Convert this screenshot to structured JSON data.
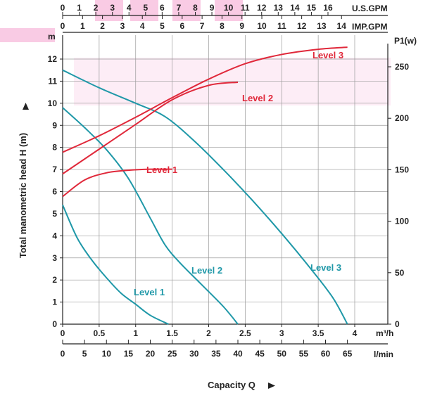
{
  "chart_data": {
    "type": "line",
    "title": "",
    "xlabel": "Capacity Q",
    "ylabel": "Total manometric head H (m)",
    "y2label": "P1(w)",
    "y_unit": "m",
    "x_unit_m3h": "m³/h",
    "x_unit_lmin": "l/min",
    "x_unit_usgpm": "U.S.GPM",
    "x_unit_impgpm": "IMP.GPM",
    "xlim": [
      0,
      4.1
    ],
    "ylim": [
      0,
      12.5
    ],
    "y2lim": [
      0,
      287
    ],
    "grid": true,
    "x_ticks_m3h": [
      "0",
      "0.5",
      "1",
      "1.5",
      "2",
      "2.5",
      "3",
      "3.5",
      "4"
    ],
    "x_ticks_lmin": [
      "0",
      "5",
      "10",
      "15",
      "20",
      "25",
      "30",
      "35",
      "40",
      "45",
      "50",
      "55",
      "60",
      "65"
    ],
    "x_ticks_usgpm": [
      "0",
      "1",
      "2",
      "3",
      "4",
      "5",
      "6",
      "7",
      "8",
      "9",
      "10",
      "11",
      "12",
      "13",
      "14",
      "15",
      "16"
    ],
    "x_ticks_impgpm": [
      "0",
      "1",
      "2",
      "3",
      "4",
      "5",
      "6",
      "7",
      "8",
      "9",
      "10",
      "11",
      "12",
      "13",
      "14"
    ],
    "y_ticks": [
      "0",
      "1",
      "2",
      "3",
      "4",
      "5",
      "6",
      "7",
      "8",
      "9",
      "10",
      "11",
      "12"
    ],
    "y2_ticks": [
      "0",
      "50",
      "100",
      "150",
      "200",
      "250"
    ],
    "head_series": [
      {
        "name": "Level 1",
        "color": "#1f98a8",
        "x": [
          0,
          0.2,
          0.4,
          0.6,
          0.8,
          1.0,
          1.2,
          1.45
        ],
        "y": [
          5.4,
          3.9,
          2.9,
          2.1,
          1.4,
          0.9,
          0.4,
          0
        ]
      },
      {
        "name": "Level 2",
        "color": "#1f98a8",
        "x": [
          0,
          0.3,
          0.6,
          0.9,
          1.2,
          1.4,
          1.6,
          1.9,
          2.2,
          2.4
        ],
        "y": [
          9.8,
          8.9,
          7.9,
          6.6,
          4.8,
          3.6,
          2.8,
          1.8,
          0.8,
          0
        ]
      },
      {
        "name": "Level 3",
        "color": "#1f98a8",
        "x": [
          0,
          0.5,
          1.0,
          1.4,
          1.8,
          2.2,
          2.6,
          3.0,
          3.4,
          3.7,
          3.9
        ],
        "y": [
          11.5,
          10.7,
          10.0,
          9.4,
          8.3,
          7.0,
          5.6,
          4.1,
          2.5,
          1.2,
          0
        ]
      }
    ],
    "power_series": [
      {
        "name": "Level 1",
        "color": "#e0283a",
        "x": [
          0,
          0.3,
          0.6,
          0.9,
          1.2,
          1.5
        ],
        "y": [
          124,
          140,
          147,
          149.5,
          150.5,
          150.5
        ]
      },
      {
        "name": "Level 2",
        "color": "#e0283a",
        "x": [
          0,
          0.5,
          1.0,
          1.5,
          2.0,
          2.4
        ],
        "y": [
          146,
          170,
          194,
          218,
          232,
          235
        ]
      },
      {
        "name": "Level 3",
        "color": "#e0283a",
        "x": [
          0,
          0.5,
          1.0,
          1.5,
          2.0,
          2.5,
          3.0,
          3.5,
          3.9
        ],
        "y": [
          167,
          183,
          201,
          220,
          238,
          253,
          262,
          267,
          269
        ]
      }
    ],
    "labels": {
      "head_level1": "Level 1",
      "head_level2": "Level 2",
      "head_level3": "Level 3",
      "power_level1": "Level 1",
      "power_level2": "Level 2",
      "power_level3": "Level 3"
    },
    "colors": {
      "head": "#1f98a8",
      "power": "#e0283a",
      "watermark": "#e6007e",
      "grid": "#9a9a9a"
    }
  }
}
